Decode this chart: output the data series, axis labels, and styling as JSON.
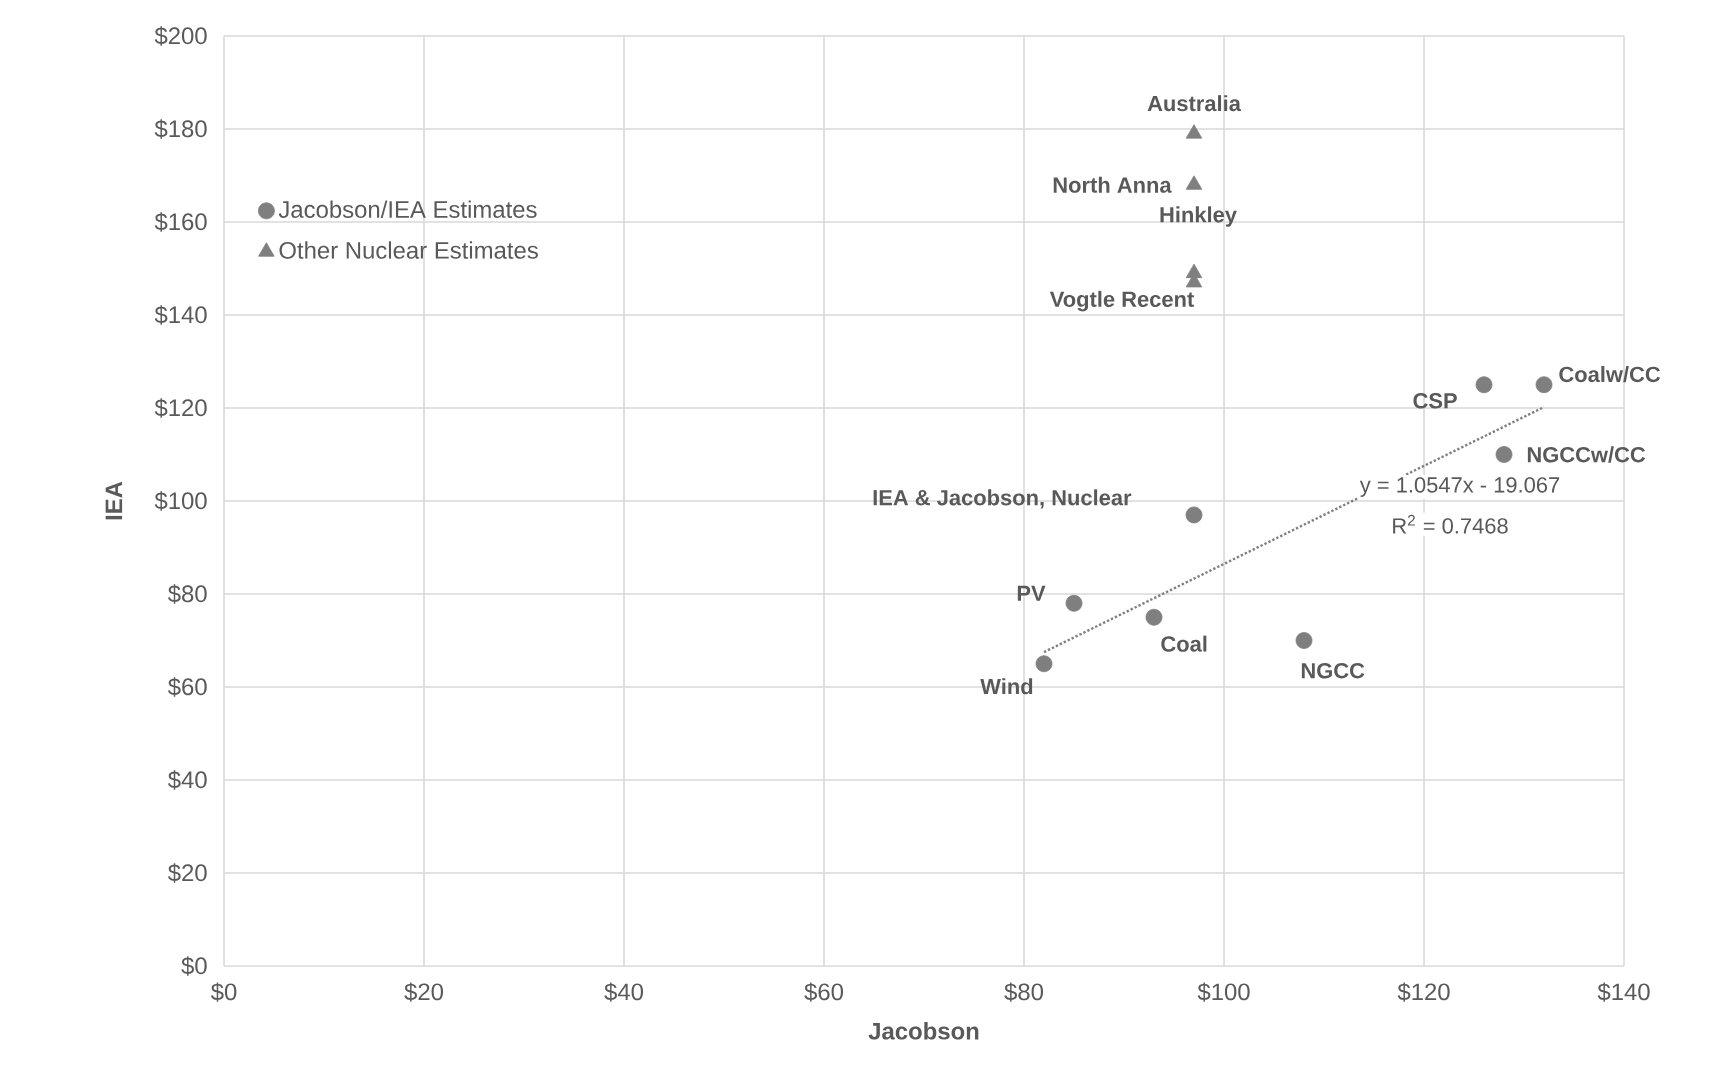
{
  "chart_data": {
    "type": "scatter",
    "xlabel": "Jacobson",
    "ylabel": "IEA",
    "xlim": [
      0,
      140
    ],
    "ylim": [
      0,
      200
    ],
    "xticks": [
      {
        "value": 0,
        "label": "$0"
      },
      {
        "value": 20,
        "label": "$20"
      },
      {
        "value": 40,
        "label": "$40"
      },
      {
        "value": 60,
        "label": "$60"
      },
      {
        "value": 80,
        "label": "$80"
      },
      {
        "value": 100,
        "label": "$100"
      },
      {
        "value": 120,
        "label": "$120"
      },
      {
        "value": 140,
        "label": "$140"
      }
    ],
    "yticks": [
      {
        "value": 0,
        "label": "$0"
      },
      {
        "value": 20,
        "label": "$20"
      },
      {
        "value": 40,
        "label": "$40"
      },
      {
        "value": 60,
        "label": "$60"
      },
      {
        "value": 80,
        "label": "$80"
      },
      {
        "value": 100,
        "label": "$100"
      },
      {
        "value": 120,
        "label": "$120"
      },
      {
        "value": 140,
        "label": "$140"
      },
      {
        "value": 160,
        "label": "$160"
      },
      {
        "value": 180,
        "label": "$180"
      },
      {
        "value": 200,
        "label": "$200"
      }
    ],
    "grid": true,
    "legend": "left",
    "series": [
      {
        "name": "Jacobson/IEA Estimates",
        "color": "#7f7f7f",
        "marker": "circle",
        "x": [
          97,
          85,
          82,
          93,
          108,
          126,
          132,
          128
        ],
        "values": [
          97,
          78,
          65,
          75,
          70,
          125,
          125,
          110
        ]
      },
      {
        "name": "Other Nuclear Estimates",
        "color": "#7f7f7f",
        "marker": "triangle",
        "x": [
          97,
          97,
          97,
          97
        ],
        "values": [
          179,
          168,
          149,
          147
        ]
      },
      {
        "type": "line",
        "color": "#7f7f7f",
        "line_style": "dotted",
        "marker": "none",
        "x": [
          82,
          132
        ],
        "values": [
          67.5,
          120.2
        ]
      }
    ],
    "annotations": [
      {
        "text": "Australia",
        "x": 97,
        "y": 179
      },
      {
        "text": "North Anna",
        "x": 97,
        "y": 168
      },
      {
        "text": "Hinkley",
        "x": 97,
        "y": 149
      },
      {
        "text": "Vogtle Recent",
        "x": 97,
        "y": 147
      },
      {
        "text": "IEA & Jacobson, Nuclear",
        "x": 97,
        "y": 97
      },
      {
        "text": "PV",
        "x": 85,
        "y": 78
      },
      {
        "text": "Wind",
        "x": 82,
        "y": 65
      },
      {
        "text": "Coal",
        "x": 93,
        "y": 75
      },
      {
        "text": "NGCC",
        "x": 108,
        "y": 70
      },
      {
        "text": "CSP",
        "x": 126,
        "y": 125
      },
      {
        "text": "Coalw/CC",
        "x": 132,
        "y": 125
      },
      {
        "text": "NGCCw/CC",
        "x": 128,
        "y": 110
      },
      "y = 1.0547x - 19.067",
      "R$^{2}$ = 0.7468"
    ]
  }
}
